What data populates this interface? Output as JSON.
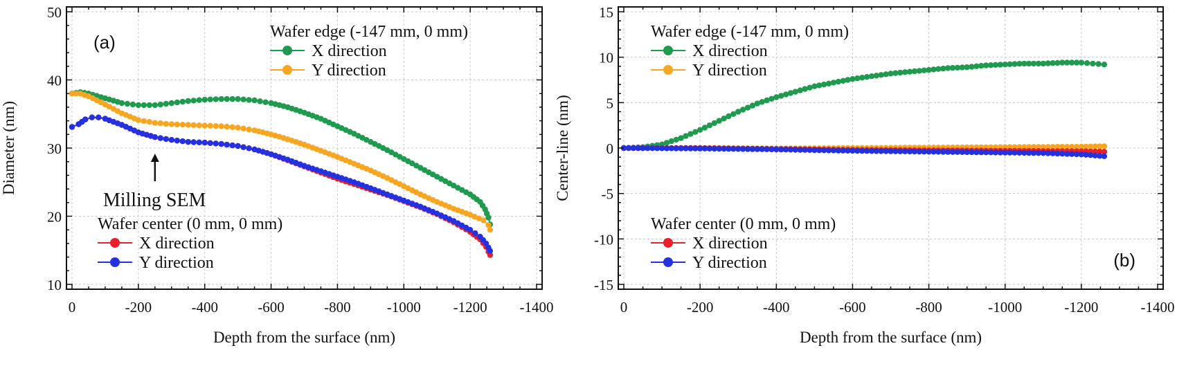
{
  "chart_data": [
    {
      "type": "scatter",
      "panel_label": "(a)",
      "xlabel": "Depth from the surface   (nm)",
      "ylabel": "Diameter   (nm)",
      "xlim": [
        0,
        -1400
      ],
      "ylim": [
        10,
        50
      ],
      "xticks": [
        0,
        -200,
        -400,
        -600,
        -800,
        -1000,
        -1200,
        -1400
      ],
      "yticks": [
        10,
        20,
        30,
        40,
        50
      ],
      "grid": true,
      "legends": [
        {
          "title": "Wafer edge (-147 mm, 0 mm)",
          "placement": "top-right",
          "entries": [
            "X direction",
            "Y direction"
          ],
          "colors": [
            "#1f9a4e",
            "#f6a623"
          ]
        },
        {
          "title": "Wafer center (0 mm, 0 mm)",
          "placement": "bottom-left",
          "entries": [
            "X direction",
            "Y direction"
          ],
          "colors": [
            "#e8202a",
            "#2431e0"
          ]
        }
      ],
      "annotation": {
        "text": "Milling SEM",
        "x": -250,
        "y": 30,
        "arrow": "up"
      },
      "series": [
        {
          "name": "Wafer edge X direction",
          "color": "#1f9a4e",
          "points": [
            [
              0,
              38
            ],
            [
              -25,
              38.2
            ],
            [
              -50,
              38
            ],
            [
              -100,
              37.3
            ],
            [
              -150,
              36.6
            ],
            [
              -200,
              36.3
            ],
            [
              -250,
              36.3
            ],
            [
              -300,
              36.6
            ],
            [
              -350,
              36.9
            ],
            [
              -400,
              37.1
            ],
            [
              -450,
              37.2
            ],
            [
              -500,
              37.2
            ],
            [
              -550,
              37.0
            ],
            [
              -600,
              36.6
            ],
            [
              -650,
              36.0
            ],
            [
              -700,
              35.2
            ],
            [
              -750,
              34.3
            ],
            [
              -800,
              33.2
            ],
            [
              -850,
              32.1
            ],
            [
              -900,
              30.9
            ],
            [
              -950,
              29.7
            ],
            [
              -1000,
              28.4
            ],
            [
              -1050,
              27.1
            ],
            [
              -1100,
              25.8
            ],
            [
              -1150,
              24.5
            ],
            [
              -1200,
              23.2
            ],
            [
              -1230,
              22.1
            ],
            [
              -1245,
              21.0
            ],
            [
              -1255,
              19.8
            ],
            [
              -1260,
              18.8
            ]
          ]
        },
        {
          "name": "Wafer edge Y direction",
          "color": "#f6a623",
          "points": [
            [
              0,
              38
            ],
            [
              -25,
              38
            ],
            [
              -50,
              37.6
            ],
            [
              -100,
              36.4
            ],
            [
              -150,
              35.1
            ],
            [
              -200,
              34.1
            ],
            [
              -250,
              33.7
            ],
            [
              -300,
              33.5
            ],
            [
              -350,
              33.4
            ],
            [
              -400,
              33.3
            ],
            [
              -450,
              33.2
            ],
            [
              -500,
              33.0
            ],
            [
              -550,
              32.6
            ],
            [
              -600,
              32.0
            ],
            [
              -650,
              31.3
            ],
            [
              -700,
              30.5
            ],
            [
              -750,
              29.6
            ],
            [
              -800,
              28.7
            ],
            [
              -850,
              27.7
            ],
            [
              -900,
              26.7
            ],
            [
              -950,
              25.6
            ],
            [
              -1000,
              24.4
            ],
            [
              -1050,
              23.2
            ],
            [
              -1100,
              22.1
            ],
            [
              -1150,
              21.1
            ],
            [
              -1200,
              20.2
            ],
            [
              -1240,
              19.4
            ],
            [
              -1255,
              18.7
            ],
            [
              -1260,
              18.0
            ]
          ]
        },
        {
          "name": "Wafer center X direction",
          "color": "#e8202a",
          "points": [
            [
              0,
              33.1
            ],
            [
              -20,
              33.5
            ],
            [
              -40,
              34.2
            ],
            [
              -60,
              34.5
            ],
            [
              -80,
              34.5
            ],
            [
              -100,
              34.3
            ],
            [
              -150,
              33.4
            ],
            [
              -200,
              32.3
            ],
            [
              -250,
              31.6
            ],
            [
              -300,
              31.2
            ],
            [
              -350,
              30.9
            ],
            [
              -400,
              30.8
            ],
            [
              -450,
              30.6
            ],
            [
              -500,
              30.3
            ],
            [
              -550,
              29.8
            ],
            [
              -600,
              29.1
            ],
            [
              -650,
              28.2
            ],
            [
              -700,
              27.3
            ],
            [
              -750,
              26.4
            ],
            [
              -800,
              25.5
            ],
            [
              -850,
              24.7
            ],
            [
              -900,
              23.9
            ],
            [
              -950,
              23.1
            ],
            [
              -1000,
              22.2
            ],
            [
              -1050,
              21.3
            ],
            [
              -1100,
              20.3
            ],
            [
              -1150,
              19.1
            ],
            [
              -1200,
              17.7
            ],
            [
              -1230,
              16.6
            ],
            [
              -1248,
              15.5
            ],
            [
              -1255,
              14.8
            ],
            [
              -1260,
              14.3
            ]
          ]
        },
        {
          "name": "Wafer center Y direction",
          "color": "#2431e0",
          "points": [
            [
              0,
              33.1
            ],
            [
              -20,
              33.5
            ],
            [
              -40,
              34.2
            ],
            [
              -60,
              34.5
            ],
            [
              -80,
              34.5
            ],
            [
              -100,
              34.3
            ],
            [
              -150,
              33.4
            ],
            [
              -200,
              32.3
            ],
            [
              -250,
              31.6
            ],
            [
              -300,
              31.2
            ],
            [
              -350,
              30.9
            ],
            [
              -400,
              30.8
            ],
            [
              -450,
              30.6
            ],
            [
              -500,
              30.3
            ],
            [
              -550,
              29.8
            ],
            [
              -600,
              29.1
            ],
            [
              -650,
              28.3
            ],
            [
              -700,
              27.4
            ],
            [
              -750,
              26.6
            ],
            [
              -800,
              25.8
            ],
            [
              -850,
              25.0
            ],
            [
              -900,
              24.1
            ],
            [
              -950,
              23.2
            ],
            [
              -1000,
              22.3
            ],
            [
              -1050,
              21.4
            ],
            [
              -1100,
              20.4
            ],
            [
              -1150,
              19.3
            ],
            [
              -1200,
              18.0
            ],
            [
              -1230,
              17.0
            ],
            [
              -1248,
              16.0
            ],
            [
              -1255,
              15.4
            ],
            [
              -1260,
              14.9
            ]
          ]
        }
      ]
    },
    {
      "type": "scatter",
      "panel_label": "(b)",
      "xlabel": "Depth from the surface   (nm)",
      "ylabel": "Center-line   (nm)",
      "xlim": [
        0,
        -1400
      ],
      "ylim": [
        -15,
        15
      ],
      "xticks": [
        0,
        -200,
        -400,
        -600,
        -800,
        -1000,
        -1200,
        -1400
      ],
      "yticks": [
        -15,
        -10,
        -5,
        0,
        5,
        10,
        15
      ],
      "grid": true,
      "legends": [
        {
          "title": "Wafer edge (-147 mm, 0 mm)",
          "placement": "top-left",
          "entries": [
            "X direction",
            "Y direction"
          ],
          "colors": [
            "#1f9a4e",
            "#f6a623"
          ]
        },
        {
          "title": "Wafer center (0 mm, 0 mm)",
          "placement": "bottom-left",
          "entries": [
            "X direction",
            "Y direction"
          ],
          "colors": [
            "#e8202a",
            "#2431e0"
          ]
        }
      ],
      "series": [
        {
          "name": "Wafer edge X direction",
          "color": "#1f9a4e",
          "points": [
            [
              0,
              0
            ],
            [
              -50,
              0.1
            ],
            [
              -100,
              0.4
            ],
            [
              -150,
              1.1
            ],
            [
              -200,
              2.0
            ],
            [
              -250,
              3.0
            ],
            [
              -300,
              4.0
            ],
            [
              -350,
              4.9
            ],
            [
              -400,
              5.6
            ],
            [
              -450,
              6.2
            ],
            [
              -500,
              6.8
            ],
            [
              -550,
              7.2
            ],
            [
              -600,
              7.6
            ],
            [
              -650,
              7.9
            ],
            [
              -700,
              8.2
            ],
            [
              -750,
              8.4
            ],
            [
              -800,
              8.6
            ],
            [
              -850,
              8.8
            ],
            [
              -900,
              8.9
            ],
            [
              -950,
              9.1
            ],
            [
              -1000,
              9.2
            ],
            [
              -1050,
              9.3
            ],
            [
              -1100,
              9.3
            ],
            [
              -1150,
              9.4
            ],
            [
              -1200,
              9.4
            ],
            [
              -1230,
              9.3
            ],
            [
              -1260,
              9.2
            ]
          ]
        },
        {
          "name": "Wafer edge Y direction",
          "color": "#f6a623",
          "points": [
            [
              0,
              0
            ],
            [
              -200,
              0
            ],
            [
              -400,
              -0.05
            ],
            [
              -600,
              0
            ],
            [
              -800,
              0.05
            ],
            [
              -1000,
              0.1
            ],
            [
              -1200,
              0.15
            ],
            [
              -1260,
              0.2
            ]
          ]
        },
        {
          "name": "Wafer center X direction",
          "color": "#e8202a",
          "points": [
            [
              0,
              0
            ],
            [
              -200,
              0
            ],
            [
              -400,
              -0.1
            ],
            [
              -600,
              -0.2
            ],
            [
              -800,
              -0.25
            ],
            [
              -1000,
              -0.3
            ],
            [
              -1200,
              -0.35
            ],
            [
              -1260,
              -0.4
            ]
          ]
        },
        {
          "name": "Wafer center Y direction",
          "color": "#2431e0",
          "points": [
            [
              0,
              0
            ],
            [
              -200,
              -0.05
            ],
            [
              -400,
              -0.15
            ],
            [
              -600,
              -0.3
            ],
            [
              -800,
              -0.4
            ],
            [
              -1000,
              -0.5
            ],
            [
              -1100,
              -0.55
            ],
            [
              -1200,
              -0.7
            ],
            [
              -1260,
              -0.9
            ]
          ]
        }
      ]
    }
  ]
}
